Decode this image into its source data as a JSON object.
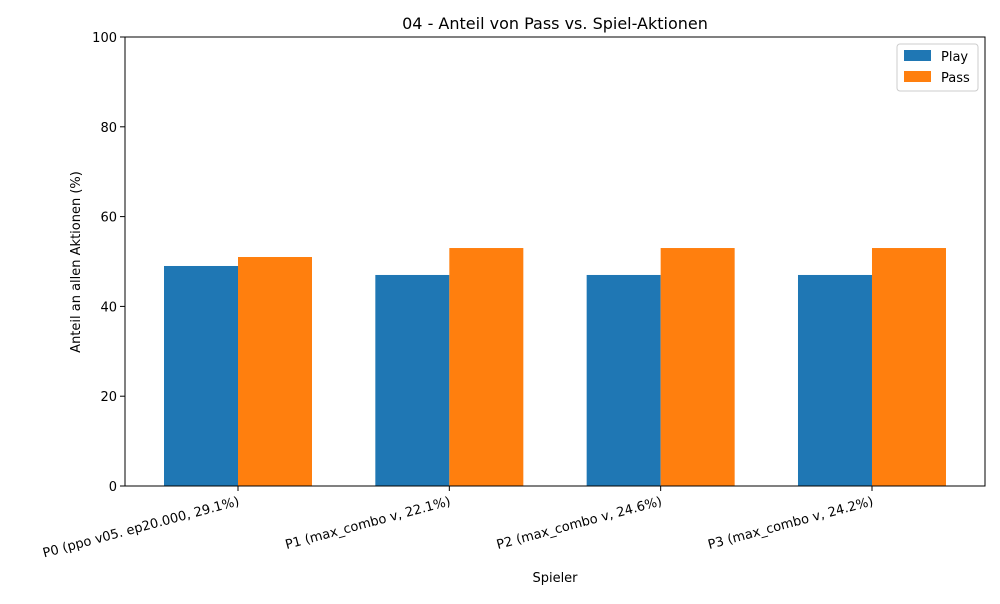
{
  "chart_data": {
    "type": "bar",
    "title": "04 - Anteil von Pass vs. Spiel-Aktionen",
    "xlabel": "Spieler",
    "ylabel": "Anteil an allen Aktionen (%)",
    "ylim": [
      0,
      100
    ],
    "yticks": [
      0,
      20,
      40,
      60,
      80,
      100
    ],
    "categories": [
      "P0 (ppo v05. ep20.000, 29.1%)",
      "P1 (max_combo v, 22.1%)",
      "P2 (max_combo v, 24.6%)",
      "P3 (max_combo v, 24.2%)"
    ],
    "series": [
      {
        "name": "Play",
        "color": "#1f77b4",
        "values": [
          49,
          47,
          47,
          47
        ]
      },
      {
        "name": "Pass",
        "color": "#ff7f0e",
        "values": [
          51,
          53,
          53,
          53
        ]
      }
    ],
    "legend": {
      "position": "top-right"
    },
    "grid": false
  }
}
